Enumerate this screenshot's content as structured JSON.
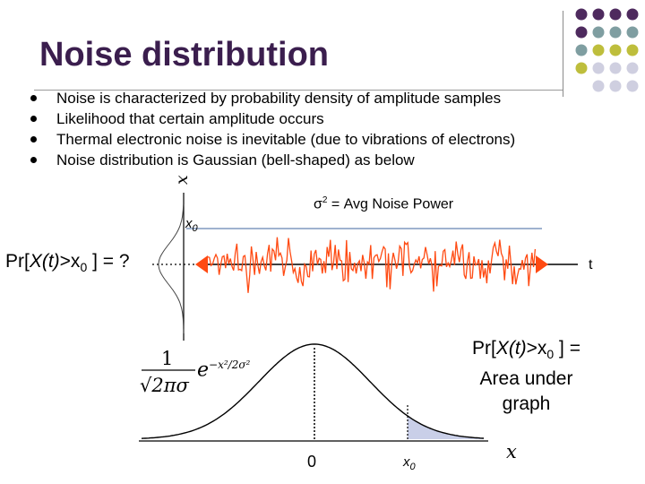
{
  "title": "Noise distribution",
  "bullets": [
    "Noise is characterized by probability density of amplitude samples",
    "Likelihood that certain amplitude occurs",
    "Thermal electronic noise is inevitable (due to vibrations of electrons)",
    "Noise distribution is Gaussian (bell-shaped) as below"
  ],
  "upper": {
    "axis_x_label": "x",
    "x0_label": "x",
    "x0_sub": "0",
    "sigma_symbol": "σ",
    "sigma_sup": "2",
    "sigma_text": " = Avg Noise Power",
    "prob_prefix": "Pr[",
    "prob_var": "X(t)",
    "prob_gt": ">x",
    "prob_sub": "0",
    "prob_suffix": " ] = ?",
    "time_label": "t"
  },
  "lower": {
    "prob_line1_prefix": "Pr[",
    "prob_line1_var": "X(t)",
    "prob_line1_gt": ">x",
    "prob_line1_sub": "0",
    "prob_line1_suffix": " ] =",
    "prob_line2": "Area under",
    "prob_line3": "graph",
    "formula_num": "1",
    "formula_den": "√2πσ",
    "formula_e": "e",
    "formula_exp": "−x²/2σ²",
    "zero_label": "0",
    "x0_label": "x",
    "x0_sub": "0",
    "axis_x_label": "x"
  },
  "colors": {
    "title": "#3b1e4e",
    "noise": "#ff4a12",
    "level_line": "#9fb2cf",
    "shaded_area": "#c9cfe8",
    "dot_purple": "#4e2a5e",
    "dot_teal": "#7f9ea1",
    "dot_olive": "#bebe3c",
    "dot_lavender": "#cfcfe0"
  }
}
